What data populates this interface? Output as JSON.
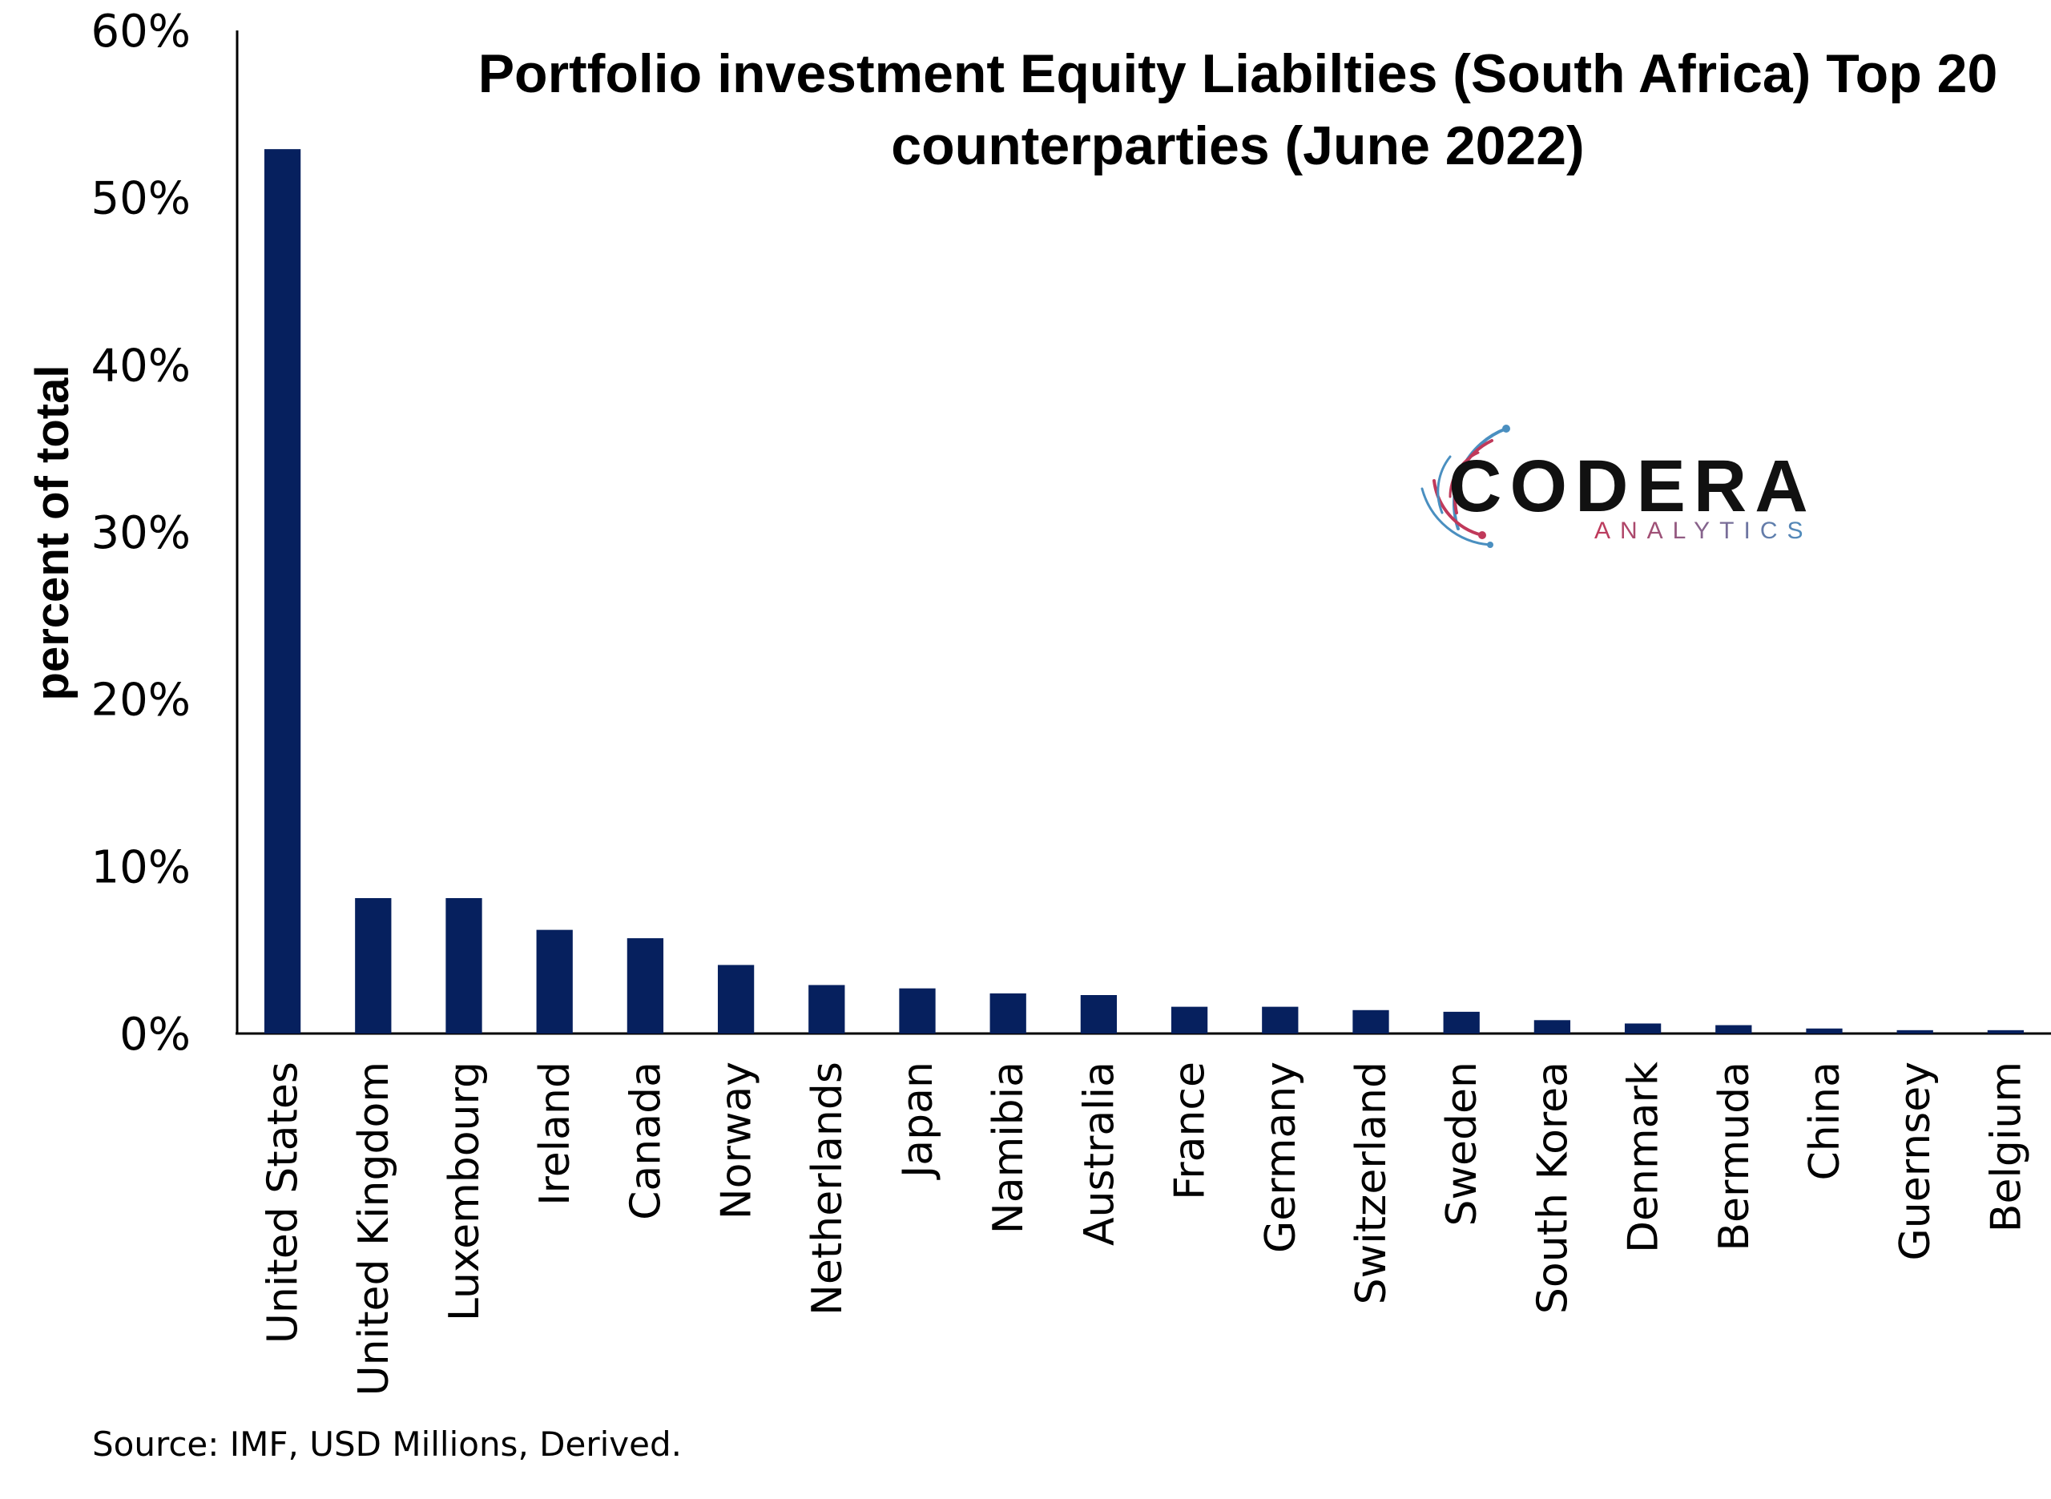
{
  "chart_data": {
    "type": "bar",
    "title": "Portfolio investment Equity Liabilties (South Africa) Top 20 counterparties (June 2022)",
    "title_lines": [
      "Portfolio investment Equity Liabilties (South Africa) Top 20",
      "counterparties (June 2022)"
    ],
    "ylabel": "percent of total",
    "xlabel": "",
    "ylim": [
      0,
      60
    ],
    "yticks": [
      0,
      10,
      20,
      30,
      40,
      50,
      60
    ],
    "ytick_labels": [
      "0%",
      "10%",
      "20%",
      "30%",
      "40%",
      "50%",
      "60%"
    ],
    "grid": false,
    "bar_color": "#06205e",
    "categories": [
      "United States",
      "United Kingdom",
      "Luxembourg",
      "Ireland",
      "Canada",
      "Norway",
      "Netherlands",
      "Japan",
      "Namibia",
      "Australia",
      "France",
      "Germany",
      "Switzerland",
      "Sweden",
      "South Korea",
      "Denmark",
      "Bermuda",
      "China",
      "Guernsey",
      "Belgium"
    ],
    "values": [
      52.9,
      8.1,
      8.1,
      6.2,
      5.7,
      4.1,
      2.9,
      2.7,
      2.4,
      2.3,
      1.6,
      1.6,
      1.4,
      1.3,
      0.8,
      0.6,
      0.5,
      0.3,
      0.2,
      0.2
    ]
  },
  "logo": {
    "name": "CODERA",
    "tagline": "ANALYTICS",
    "colors": {
      "main": "#111111",
      "tagline_start": "#c0395a",
      "tagline_end": "#4a8fc0",
      "arc_red": "#c0395a",
      "arc_blue": "#4a8fc0"
    }
  },
  "source": "Source: IMF, USD Millions, Derived."
}
